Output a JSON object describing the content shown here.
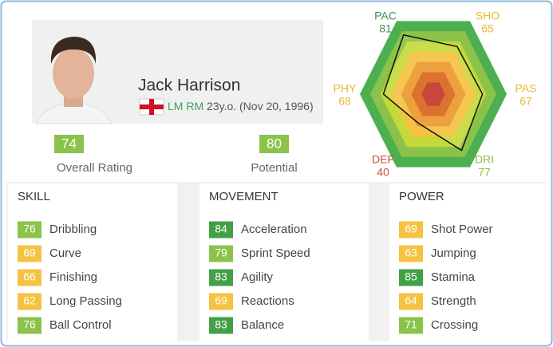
{
  "player": {
    "name": "Jack Harrison",
    "positions": [
      "LM",
      "RM"
    ],
    "age": "23y.o. (Nov 20, 1996)"
  },
  "ratings": [
    {
      "value": 74,
      "label": "Overall Rating"
    },
    {
      "value": 80,
      "label": "Potential"
    }
  ],
  "radar": {
    "rlim": [
      0,
      100
    ],
    "attributes": [
      {
        "name": "PAC",
        "value": 81
      },
      {
        "name": "SHO",
        "value": 65
      },
      {
        "name": "PAS",
        "value": 67
      },
      {
        "name": "DRI",
        "value": 77
      },
      {
        "name": "DEF",
        "value": 40
      },
      {
        "name": "PHY",
        "value": 68
      }
    ]
  },
  "sections": [
    {
      "title": "SKILL",
      "stats": [
        {
          "value": 76,
          "name": "Dribbling"
        },
        {
          "value": 69,
          "name": "Curve"
        },
        {
          "value": 66,
          "name": "Finishing"
        },
        {
          "value": 62,
          "name": "Long Passing"
        },
        {
          "value": 76,
          "name": "Ball Control"
        }
      ]
    },
    {
      "title": "MOVEMENT",
      "stats": [
        {
          "value": 84,
          "name": "Acceleration"
        },
        {
          "value": 79,
          "name": "Sprint Speed"
        },
        {
          "value": 83,
          "name": "Agility"
        },
        {
          "value": 69,
          "name": "Reactions"
        },
        {
          "value": 83,
          "name": "Balance"
        }
      ]
    },
    {
      "title": "POWER",
      "stats": [
        {
          "value": 69,
          "name": "Shot Power"
        },
        {
          "value": 63,
          "name": "Jumping"
        },
        {
          "value": 85,
          "name": "Stamina"
        },
        {
          "value": 64,
          "name": "Strength"
        },
        {
          "value": 71,
          "name": "Crossing"
        }
      ]
    }
  ]
}
